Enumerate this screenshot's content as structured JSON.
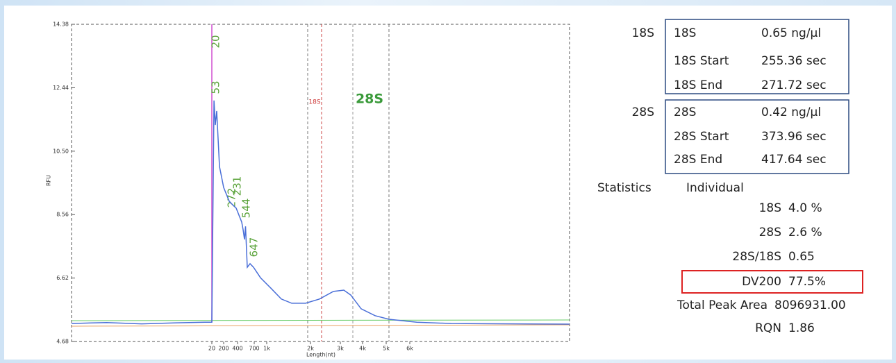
{
  "chart_data": {
    "type": "line",
    "y_label": "RFU",
    "x_label": "Length(nt)",
    "color": "#4a6fd8",
    "x": [
      0,
      5,
      10,
      15,
      19,
      20,
      53,
      73,
      94,
      136,
      200,
      280,
      330,
      380,
      475,
      500,
      525,
      544,
      575,
      625,
      688,
      850,
      1095,
      1333,
      1571,
      1889,
      2302,
      2767,
      3156,
      3469,
      3938,
      4529,
      5118,
      6261,
      7565,
      12000
    ],
    "values": [
      5.23,
      5.26,
      5.22,
      5.25,
      5.27,
      5.27,
      12.05,
      11.3,
      11.73,
      10.03,
      9.39,
      8.97,
      8.86,
      8.76,
      8.33,
      8.1,
      7.8,
      8.2,
      6.95,
      7.06,
      6.95,
      6.63,
      6.31,
      5.98,
      5.85,
      5.85,
      5.98,
      6.21,
      6.25,
      6.1,
      5.68,
      5.47,
      5.36,
      5.27,
      5.23,
      5.21
    ],
    "ylim": [
      4.68,
      14.38
    ],
    "yticks": [
      4.68,
      6.62,
      8.56,
      {
        "value": 10.5,
        "label": "10.50"
      },
      12.44,
      14.38
    ],
    "xlim": [
      0,
      12000
    ],
    "xticks": [
      20,
      200,
      400,
      700,
      {
        "value": 1000,
        "label": "1k"
      },
      {
        "value": 2000,
        "label": "2k"
      },
      {
        "value": 3000,
        "label": "3k"
      },
      {
        "value": 4000,
        "label": "4k"
      },
      {
        "value": 5000,
        "label": "5k"
      },
      {
        "value": 6000,
        "label": "6k"
      }
    ],
    "annotations": [
      "20",
      "53",
      "272",
      "231",
      "544",
      "647",
      "18S",
      "28S"
    ]
  },
  "peaks": [
    {
      "name": "18S",
      "rows": [
        [
          "18S",
          "0.65 ng/µl"
        ],
        [
          "18S Start",
          "255.36 sec"
        ],
        [
          "18S End",
          "271.72 sec"
        ]
      ]
    },
    {
      "name": "28S",
      "rows": [
        [
          "28S",
          "0.42 ng/µl"
        ],
        [
          "28S Start",
          "373.96 sec"
        ],
        [
          "28S End",
          "417.64 sec"
        ]
      ]
    }
  ],
  "statistics": {
    "label": "Statistics",
    "mode": "Individual",
    "rows": [
      [
        "18S",
        "4.0 %"
      ],
      [
        "28S",
        "2.6 %"
      ],
      [
        "28S/18S",
        "0.65"
      ],
      [
        "DV200",
        "77.5%"
      ],
      [
        "Total Peak Area",
        "8096931.00"
      ],
      [
        "RQN",
        "1.86"
      ]
    ]
  }
}
